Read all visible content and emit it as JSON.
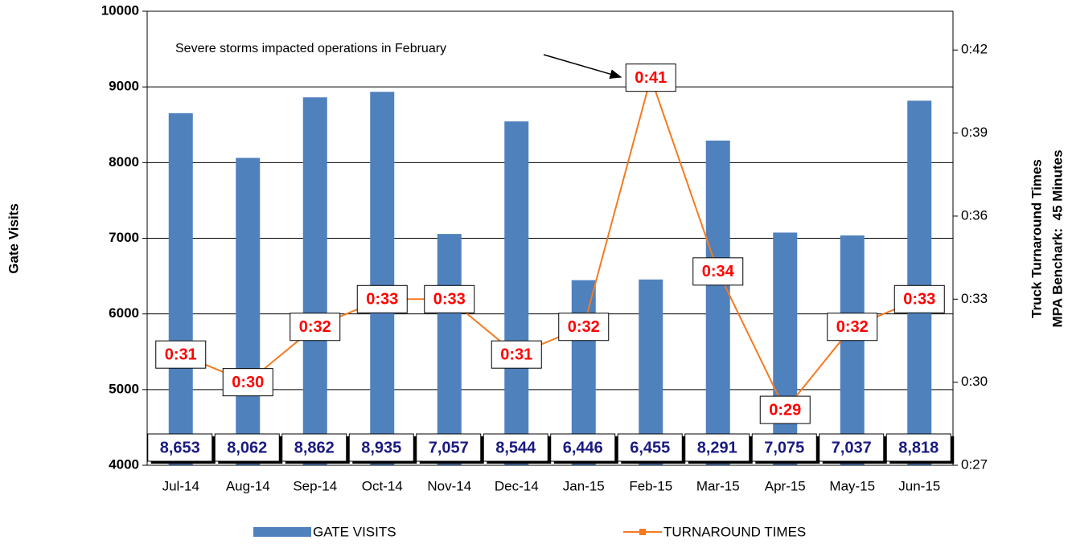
{
  "chart_data": {
    "type": "bar",
    "categories": [
      "Jul-14",
      "Aug-14",
      "Sep-14",
      "Oct-14",
      "Nov-14",
      "Dec-14",
      "Jan-15",
      "Feb-15",
      "Mar-15",
      "Apr-15",
      "May-15",
      "Jun-15"
    ],
    "series": [
      {
        "name": "GATE VISITS",
        "type": "bar",
        "color": "#4f81bd",
        "values": [
          8653,
          8062,
          8862,
          8935,
          7057,
          8544,
          6446,
          6455,
          8291,
          7075,
          7037,
          8818
        ],
        "value_labels": [
          "8,653",
          "8,062",
          "8,862",
          "8,935",
          "7,057",
          "8,544",
          "6,446",
          "6,455",
          "8,291",
          "7,075",
          "7,037",
          "8,818"
        ]
      },
      {
        "name": "TURNAROUND TIMES",
        "type": "line",
        "axis": "y2",
        "color": "#f47a20",
        "values": [
          31,
          30,
          32,
          33,
          33,
          31,
          32,
          41,
          34,
          29,
          32,
          33
        ],
        "value_labels": [
          "0:31",
          "0:30",
          "0:32",
          "0:33",
          "0:33",
          "0:31",
          "0:32",
          "0:41",
          "0:34",
          "0:29",
          "0:32",
          "0:33"
        ]
      }
    ],
    "ylabel": "Gate Visits",
    "y2label": [
      "Truck Turnaround Times",
      "MPA Benchark:  45 Minutes"
    ],
    "ylim": [
      4000,
      10000
    ],
    "yticks": [
      4000,
      5000,
      6000,
      7000,
      8000,
      9000,
      10000
    ],
    "y2lim": [
      27,
      43.4
    ],
    "y2ticks": [
      {
        "value": 27,
        "label": "0:27"
      },
      {
        "value": 30,
        "label": "0:30"
      },
      {
        "value": 33,
        "label": "0:33"
      },
      {
        "value": 36,
        "label": "0:36"
      },
      {
        "value": 39,
        "label": "0:39"
      },
      {
        "value": 42,
        "label": "0:42"
      }
    ],
    "annotation": "Severe storms impacted operations in February",
    "grid": true,
    "legend": "bottom"
  }
}
